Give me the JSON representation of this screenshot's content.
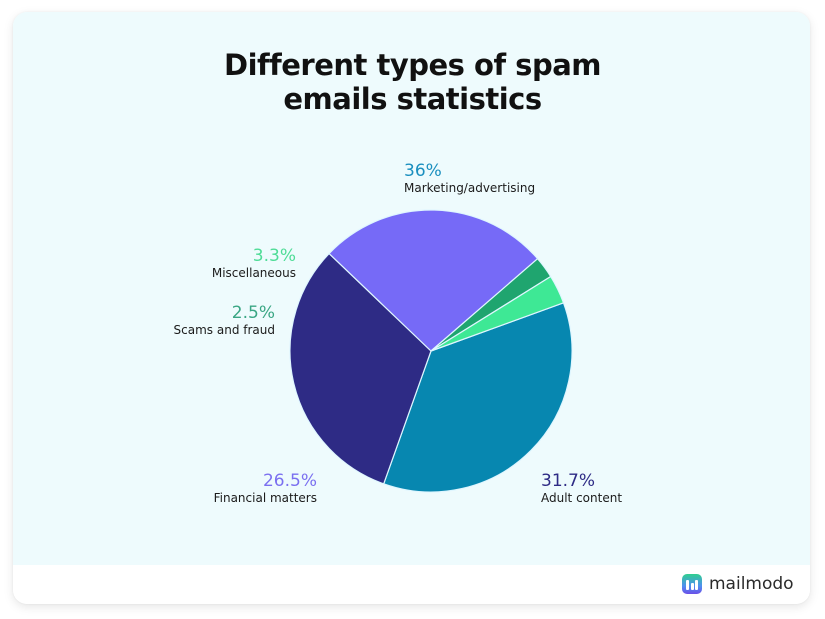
{
  "title": {
    "line1": "Different types of spam",
    "line2": "emails statistics"
  },
  "brand": {
    "name": "mailmodo",
    "icon": "mailmodo-logo-icon"
  },
  "colors": {
    "marketing": "#0787b0",
    "adult": "#2e2b85",
    "financial": "#766af7",
    "scams": "#1fa56f",
    "misc": "#3ee895",
    "background": "#eefbfd"
  },
  "labels": [
    {
      "pct": "36%",
      "name": "Marketing/advertising",
      "color": "#1a8fbf"
    },
    {
      "pct": "31.7%",
      "name": "Adult content",
      "color": "#2e2b85"
    },
    {
      "pct": "26.5%",
      "name": "Financial matters",
      "color": "#7b70f0"
    },
    {
      "pct": "2.5%",
      "name": "Scams and fraud",
      "color": "#3aa684"
    },
    {
      "pct": "3.3%",
      "name": "Miscellaneous",
      "color": "#4fdc97"
    }
  ],
  "chart_data": {
    "type": "pie",
    "title": "Different types of spam emails statistics",
    "categories": [
      "Marketing/advertising",
      "Adult content",
      "Financial matters",
      "Scams and fraud",
      "Miscellaneous"
    ],
    "values": [
      36,
      31.7,
      26.5,
      2.5,
      3.3
    ],
    "unit": "%",
    "colors": [
      "#0787b0",
      "#2e2b85",
      "#766af7",
      "#1fa56f",
      "#3ee895"
    ],
    "legend": "none (direct labels)",
    "start_angle_deg": -20,
    "direction": "clockwise"
  }
}
